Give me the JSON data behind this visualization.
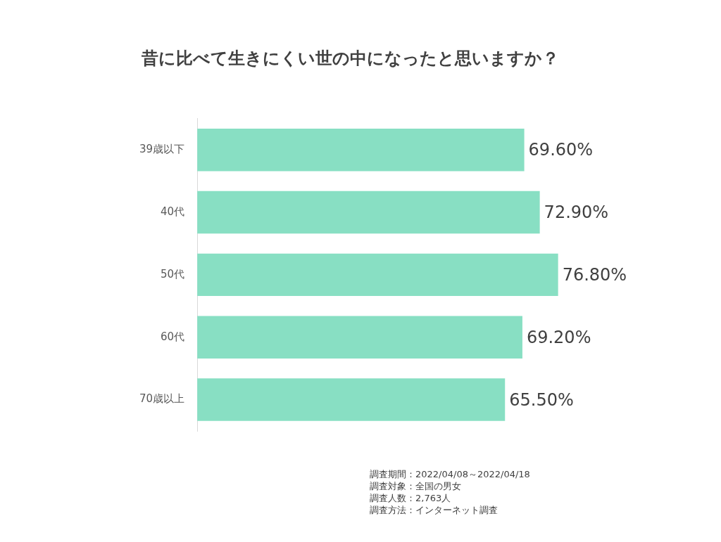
{
  "chart_data": {
    "type": "bar",
    "orientation": "horizontal",
    "title": "昔に比べて生きにくい世の中になったと思いますか？",
    "categories": [
      "39歳以下",
      "40代",
      "50代",
      "60代",
      "70歳以上"
    ],
    "values": [
      69.6,
      72.9,
      76.8,
      69.2,
      65.5
    ],
    "value_labels": [
      "69.60%",
      "72.90%",
      "76.80%",
      "69.20%",
      "65.50%"
    ],
    "color": "#88dfc3",
    "tick_labels": "y",
    "legend": false,
    "annotations": [
      "調査期間：2022/04/08～2022/04/18",
      "調査対象：全国の男女",
      "調査人数：2,763人",
      "調査方法：インターネット調査"
    ]
  }
}
